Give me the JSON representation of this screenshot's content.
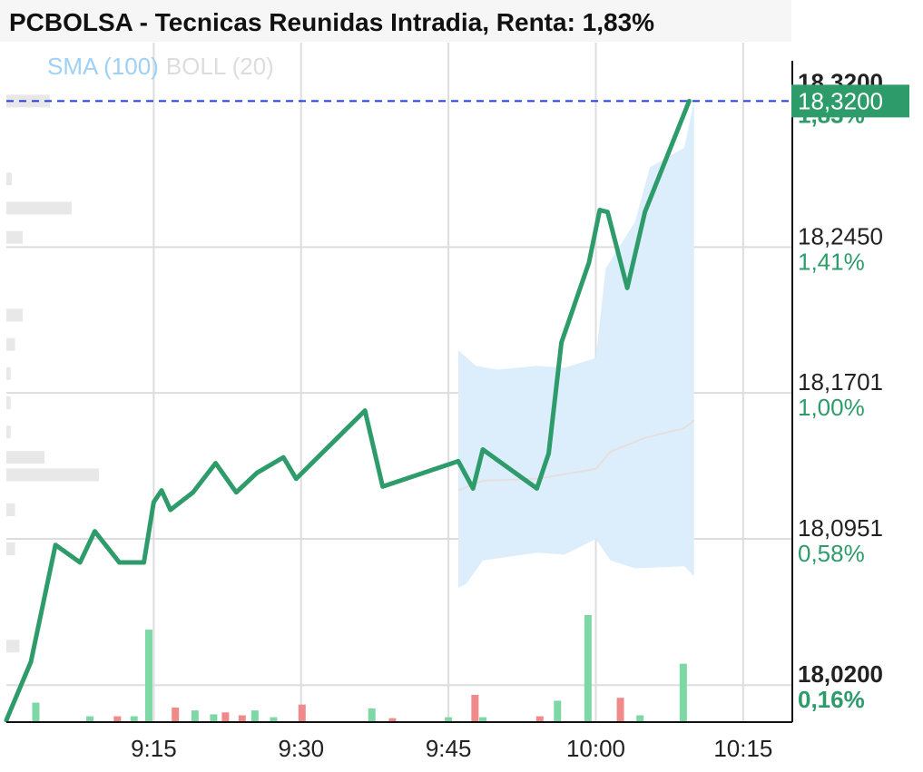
{
  "title": "PCBOLSA - Tecnicas Reunidas Intradia, Renta: 1,83%",
  "colors": {
    "line": "#2e9b6a",
    "band": "#dceefb",
    "sma": "#9fd0f5",
    "boll": "#dddddd",
    "mid": "#e5dede",
    "volume_up": "#7dd8a6",
    "volume_down": "#f08a8a",
    "current_price_bg": "#2e9b6a",
    "reference_line": "#1f3fd6"
  },
  "chart_data": {
    "type": "line",
    "title": "PCBOLSA - Tecnicas Reunidas Intradia, Renta: 1,83%",
    "x_labels": [
      "9:15",
      "9:30",
      "9:45",
      "10:00",
      "10:15"
    ],
    "x_label_minutes": [
      555,
      570,
      585,
      600,
      615
    ],
    "xlim_minutes": [
      540,
      620
    ],
    "ylim": [
      18.001,
      18.35
    ],
    "y_ticks": [
      {
        "value": 18.245,
        "label": "18,2450",
        "pct": "1,41%",
        "bold": false
      },
      {
        "value": 18.1701,
        "label": "18,1701",
        "pct": "1,00%",
        "bold": false
      },
      {
        "value": 18.0951,
        "label": "18,0951",
        "pct": "0,58%",
        "bold": false
      },
      {
        "value": 18.02,
        "label": "18,0200",
        "pct": "0,16%",
        "bold": true
      }
    ],
    "current_price": {
      "value": 18.32,
      "label": "18,3200",
      "hidden_tick": "18,3200",
      "hidden_pct": "1,83%"
    },
    "legend": [
      {
        "name": "SMA (100)",
        "color": "#9fd0f5"
      },
      {
        "name": "BOLL (20)",
        "color": "#dddddd"
      }
    ],
    "series": [
      {
        "name": "price",
        "points": [
          [
            540.0,
            18.002
          ],
          [
            542.5,
            18.032
          ],
          [
            545.0,
            18.092
          ],
          [
            547.5,
            18.083
          ],
          [
            549.0,
            18.099
          ],
          [
            551.5,
            18.083
          ],
          [
            554.0,
            18.083
          ],
          [
            555.0,
            18.114
          ],
          [
            555.8,
            18.12
          ],
          [
            556.7,
            18.11
          ],
          [
            559.0,
            18.119
          ],
          [
            561.3,
            18.134
          ],
          [
            563.4,
            18.119
          ],
          [
            565.5,
            18.129
          ],
          [
            568.2,
            18.137
          ],
          [
            569.5,
            18.126
          ],
          [
            576.5,
            18.161
          ],
          [
            578.3,
            18.122
          ],
          [
            586.0,
            18.135
          ],
          [
            587.5,
            18.121
          ],
          [
            588.5,
            18.141
          ],
          [
            594.0,
            18.121
          ],
          [
            595.2,
            18.139
          ],
          [
            596.5,
            18.196
          ],
          [
            599.3,
            18.237
          ],
          [
            600.4,
            18.264
          ],
          [
            601.2,
            18.263
          ],
          [
            603.2,
            18.224
          ],
          [
            605.0,
            18.263
          ],
          [
            609.5,
            18.32
          ]
        ]
      },
      {
        "name": "boll_mid",
        "points": [
          [
            586.0,
            18.12
          ],
          [
            588.5,
            18.125
          ],
          [
            594.0,
            18.126
          ],
          [
            600.0,
            18.131
          ],
          [
            601.5,
            18.14
          ],
          [
            605.0,
            18.147
          ],
          [
            609.0,
            18.152
          ],
          [
            610.0,
            18.156
          ]
        ]
      },
      {
        "name": "boll_upper",
        "points": [
          [
            586.0,
            18.192
          ],
          [
            587.8,
            18.184
          ],
          [
            590.0,
            18.182
          ],
          [
            594.0,
            18.184
          ],
          [
            596.8,
            18.183
          ],
          [
            600.0,
            18.188
          ],
          [
            601.0,
            18.234
          ],
          [
            604.0,
            18.258
          ],
          [
            605.5,
            18.286
          ],
          [
            609.0,
            18.296
          ],
          [
            610.0,
            18.32
          ]
        ]
      },
      {
        "name": "boll_lower",
        "points": [
          [
            586.0,
            18.07
          ],
          [
            586.8,
            18.072
          ],
          [
            588.5,
            18.084
          ],
          [
            594.0,
            18.088
          ],
          [
            596.8,
            18.087
          ],
          [
            600.0,
            18.095
          ],
          [
            601.5,
            18.084
          ],
          [
            604.0,
            18.08
          ],
          [
            609.0,
            18.081
          ],
          [
            610.0,
            18.076
          ]
        ]
      }
    ],
    "volume": [
      {
        "t": 543.0,
        "v": 0.2,
        "up": true
      },
      {
        "t": 548.5,
        "v": 0.06,
        "up": true
      },
      {
        "t": 551.3,
        "v": 0.06,
        "up": false
      },
      {
        "t": 553.0,
        "v": 0.06,
        "up": true
      },
      {
        "t": 554.5,
        "v": 0.95,
        "up": true
      },
      {
        "t": 557.2,
        "v": 0.15,
        "up": false
      },
      {
        "t": 559.2,
        "v": 0.12,
        "up": true
      },
      {
        "t": 561.1,
        "v": 0.08,
        "up": true
      },
      {
        "t": 562.3,
        "v": 0.1,
        "up": false
      },
      {
        "t": 564.0,
        "v": 0.07,
        "up": false
      },
      {
        "t": 565.3,
        "v": 0.12,
        "up": true
      },
      {
        "t": 567.2,
        "v": 0.05,
        "up": true
      },
      {
        "t": 570.1,
        "v": 0.18,
        "up": false
      },
      {
        "t": 577.2,
        "v": 0.14,
        "up": true
      },
      {
        "t": 579.3,
        "v": 0.04,
        "up": false
      },
      {
        "t": 585.0,
        "v": 0.05,
        "up": true
      },
      {
        "t": 587.7,
        "v": 0.28,
        "up": false
      },
      {
        "t": 588.5,
        "v": 0.05,
        "up": true
      },
      {
        "t": 594.3,
        "v": 0.06,
        "up": false
      },
      {
        "t": 596.1,
        "v": 0.22,
        "up": true
      },
      {
        "t": 599.2,
        "v": 1.1,
        "up": true
      },
      {
        "t": 602.5,
        "v": 0.25,
        "up": false
      },
      {
        "t": 604.5,
        "v": 0.07,
        "up": true
      },
      {
        "t": 608.9,
        "v": 0.6,
        "up": true
      }
    ],
    "volume_profile": [
      {
        "price": 18.32,
        "width": 0.4
      },
      {
        "price": 18.28,
        "width": 0.05
      },
      {
        "price": 18.265,
        "width": 0.6
      },
      {
        "price": 18.25,
        "width": 0.15
      },
      {
        "price": 18.21,
        "width": 0.15
      },
      {
        "price": 18.195,
        "width": 0.08
      },
      {
        "price": 18.18,
        "width": 0.04
      },
      {
        "price": 18.165,
        "width": 0.04
      },
      {
        "price": 18.15,
        "width": 0.04
      },
      {
        "price": 18.137,
        "width": 0.35
      },
      {
        "price": 18.128,
        "width": 0.85
      },
      {
        "price": 18.11,
        "width": 0.08
      },
      {
        "price": 18.09,
        "width": 0.08
      },
      {
        "price": 18.04,
        "width": 0.12
      }
    ]
  }
}
